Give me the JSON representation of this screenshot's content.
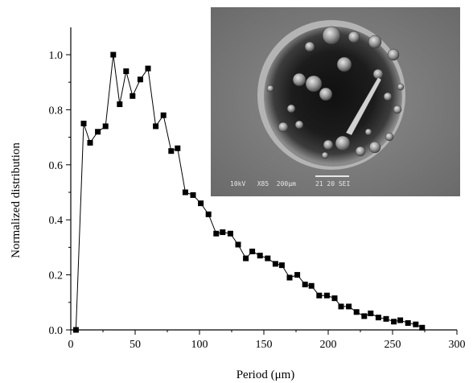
{
  "chart_data": {
    "type": "line",
    "xlabel": "Period (μm)",
    "ylabel": "Normalized distribution",
    "xlim": [
      0,
      300
    ],
    "ylim": [
      0,
      1.1
    ],
    "xticks": [
      0,
      50,
      100,
      150,
      200,
      250,
      300
    ],
    "xtick_labels": [
      "0",
      "50",
      "100",
      "150",
      "200",
      "250",
      "300"
    ],
    "yticks": [
      0.0,
      0.2,
      0.4,
      0.6,
      0.8,
      1.0
    ],
    "ytick_labels": [
      "0.0",
      "0.2",
      "0.4",
      "0.6",
      "0.8",
      "1.0"
    ],
    "grid": false,
    "marker": "square",
    "series": [
      {
        "x": [
          4,
          10,
          15,
          21,
          27,
          33,
          38,
          43,
          48,
          54,
          60,
          66,
          72,
          78,
          83,
          89,
          95,
          101,
          107,
          113,
          118,
          124,
          130,
          136,
          141,
          147,
          153,
          159,
          164,
          170,
          176,
          182,
          187,
          193,
          199,
          205,
          210,
          216,
          222,
          228,
          233,
          239,
          245,
          251,
          256,
          262,
          268,
          273
        ],
        "y": [
          0.0,
          0.75,
          0.68,
          0.72,
          0.74,
          1.0,
          0.82,
          0.94,
          0.85,
          0.91,
          0.95,
          0.74,
          0.78,
          0.65,
          0.66,
          0.5,
          0.49,
          0.46,
          0.42,
          0.35,
          0.355,
          0.35,
          0.31,
          0.26,
          0.285,
          0.27,
          0.26,
          0.24,
          0.235,
          0.19,
          0.2,
          0.165,
          0.16,
          0.125,
          0.125,
          0.115,
          0.085,
          0.085,
          0.065,
          0.05,
          0.06,
          0.045,
          0.04,
          0.03,
          0.035,
          0.025,
          0.02,
          0.008
        ]
      }
    ],
    "inset": {
      "type": "micrograph",
      "scale_text": "10kV   X85  200μm     21 20 SEI"
    }
  }
}
